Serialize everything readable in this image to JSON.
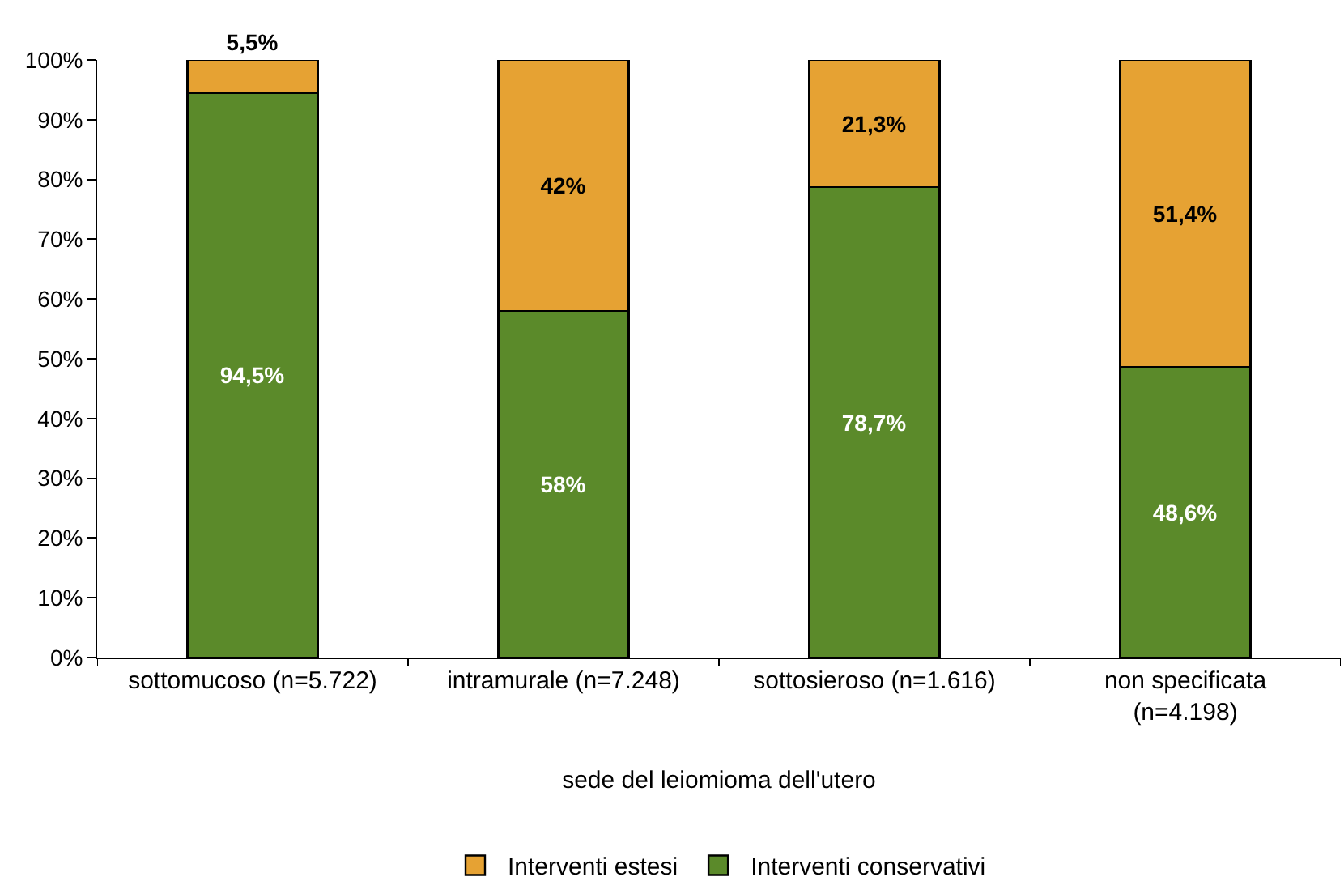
{
  "chart_data": {
    "type": "bar",
    "stacked": true,
    "xlabel": "sede del leiomioma dell'utero",
    "categories": [
      "sottomucoso (n=5.722)",
      "intramurale (n=7.248)",
      "sottosieroso (n=1.616)",
      "non specificata (n=4.198)"
    ],
    "series": [
      {
        "name": "Interventi conservativi",
        "color": "#5b8a2a",
        "values": [
          94.5,
          58,
          78.7,
          48.6
        ],
        "value_labels": [
          "94,5%",
          "58%",
          "78,7%",
          "48,6%"
        ]
      },
      {
        "name": "Interventi estesi",
        "color": "#e6a233",
        "values": [
          5.5,
          42,
          21.3,
          51.4
        ],
        "value_labels": [
          "5,5%",
          "42%",
          "21,3%",
          "51,4%"
        ]
      }
    ],
    "ylim": [
      0,
      100
    ],
    "yticks": [
      {
        "value": 0,
        "label": "0%"
      },
      {
        "value": 10,
        "label": "10%"
      },
      {
        "value": 20,
        "label": "20%"
      },
      {
        "value": 30,
        "label": "30%"
      },
      {
        "value": 40,
        "label": "40%"
      },
      {
        "value": 50,
        "label": "50%"
      },
      {
        "value": 60,
        "label": "60%"
      },
      {
        "value": 70,
        "label": "70%"
      },
      {
        "value": 80,
        "label": "80%"
      },
      {
        "value": 90,
        "label": "90%"
      },
      {
        "value": 100,
        "label": "100%"
      }
    ],
    "grid": false,
    "legend": "bottom"
  }
}
